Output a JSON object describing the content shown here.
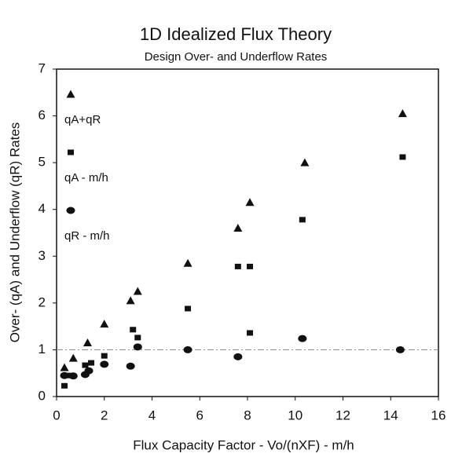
{
  "chart_data": {
    "type": "scatter",
    "title": "1D Idealized Flux Theory",
    "subtitle": "Design Over- and Underflow Rates",
    "xlabel": "Flux Capacity Factor - Vo/(nXF) - m/h",
    "ylabel": "Over- (qA) and Underflow (qR) Rates",
    "xlim": [
      0,
      16
    ],
    "ylim": [
      0,
      7
    ],
    "xticks": [
      0,
      2,
      4,
      6,
      8,
      10,
      12,
      14,
      16
    ],
    "yticks": [
      0,
      1,
      2,
      3,
      4,
      5,
      6,
      7
    ],
    "reference_line": 1,
    "series": [
      {
        "name": "qA+qR",
        "color": "#111111",
        "marker": "triangle",
        "x": [
          0.33,
          0.7,
          1.3,
          2.0,
          3.1,
          3.4,
          5.5,
          7.6,
          8.1,
          10.4,
          14.5
        ],
        "values": [
          0.62,
          0.82,
          1.15,
          1.55,
          2.05,
          2.25,
          2.85,
          3.6,
          4.15,
          5.0,
          6.05
        ]
      },
      {
        "name": "qA - m/h",
        "color": "#111111",
        "marker": "square",
        "x": [
          0.33,
          0.5,
          1.2,
          1.45,
          2.0,
          3.2,
          3.4,
          5.5,
          7.6,
          8.1,
          8.1,
          10.3,
          14.5
        ],
        "values": [
          0.23,
          0.45,
          0.67,
          0.72,
          0.87,
          1.43,
          1.26,
          1.88,
          2.78,
          2.78,
          1.36,
          3.78,
          5.12
        ]
      },
      {
        "name": "qR - m/h",
        "color": "#111111",
        "marker": "circle",
        "x": [
          0.33,
          0.7,
          1.2,
          1.35,
          2.0,
          3.1,
          3.4,
          5.5,
          7.6,
          10.3,
          14.4
        ],
        "values": [
          0.45,
          0.44,
          0.47,
          0.55,
          0.69,
          0.65,
          1.06,
          1.0,
          0.85,
          1.24,
          1.0
        ]
      }
    ]
  }
}
